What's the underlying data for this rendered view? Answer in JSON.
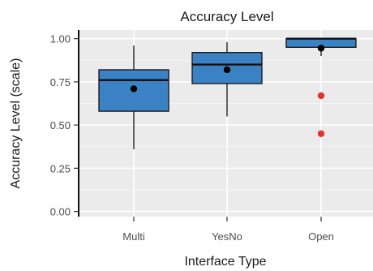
{
  "chart_data": {
    "type": "boxplot",
    "title": "Accuracy Level",
    "xlabel": "Interface Type",
    "ylabel": "Accuracy Level (scale)",
    "ylim": [
      -0.03,
      1.05
    ],
    "yticks": [
      0.0,
      0.25,
      0.5,
      0.75,
      1.0
    ],
    "ytick_labels": [
      "0.00",
      "0.25",
      "0.50",
      "0.75",
      "1.00"
    ],
    "categories": [
      "Multi",
      "YesNo",
      "Open"
    ],
    "boxes": [
      {
        "category": "Multi",
        "whisker_low": 0.36,
        "q1": 0.58,
        "median": 0.76,
        "q3": 0.82,
        "whisker_high": 0.96,
        "mean": 0.71,
        "outliers": []
      },
      {
        "category": "YesNo",
        "whisker_low": 0.55,
        "q1": 0.74,
        "median": 0.85,
        "q3": 0.92,
        "whisker_high": 0.98,
        "mean": 0.82,
        "outliers": []
      },
      {
        "category": "Open",
        "whisker_low": 0.9,
        "q1": 0.95,
        "median": 1.0,
        "q3": 1.0,
        "whisker_high": 1.0,
        "mean": 0.945,
        "outliers": [
          0.67,
          0.45
        ]
      }
    ],
    "grid": true,
    "colors": {
      "box_fill": "#3b82c4",
      "box_edge": "#111111",
      "median": "#111111",
      "mean": "#000000",
      "outlier": "#e5322d",
      "panel_bg": "#ebebeb",
      "grid": "#ffffff"
    }
  }
}
